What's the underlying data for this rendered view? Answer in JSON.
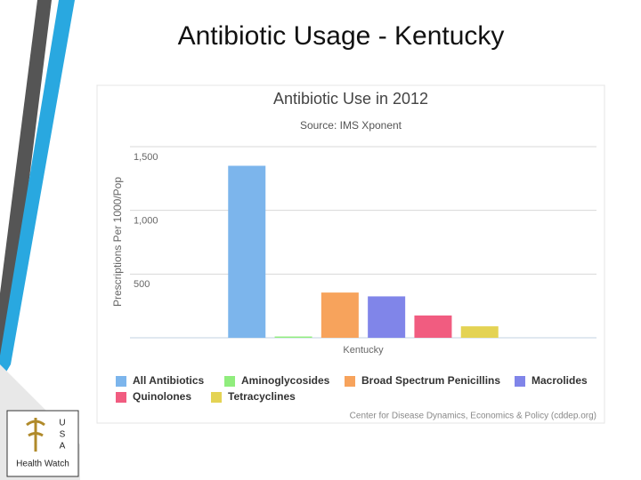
{
  "slide_title": "Antibiotic Usage - Kentucky",
  "logo": {
    "letters": [
      "U",
      "S",
      "A"
    ],
    "caption": "Health Watch"
  },
  "chart_data": {
    "type": "bar",
    "title": "Antibiotic Use in 2012",
    "subtitle": "Source: IMS Xponent",
    "ylabel": "Prescriptions Per 1000/Pop",
    "credits": "Center for Disease Dynamics, Economics & Policy (cddep.org)",
    "categories": [
      "Kentucky"
    ],
    "series": [
      {
        "name": "All Antibiotics",
        "color": "#7cb5ec",
        "values": [
          1350
        ]
      },
      {
        "name": "Aminoglycosides",
        "color": "#90ed7d",
        "values": [
          10
        ]
      },
      {
        "name": "Broad Spectrum Penicillins",
        "color": "#f7a35c",
        "values": [
          355
        ]
      },
      {
        "name": "Macrolides",
        "color": "#8085e9",
        "values": [
          325
        ]
      },
      {
        "name": "Quinolones",
        "color": "#f15c80",
        "values": [
          175
        ]
      },
      {
        "name": "Tetracyclines",
        "color": "#e4d354",
        "values": [
          90
        ]
      }
    ],
    "ylim": [
      0,
      1500
    ],
    "yticks": [
      500,
      {
        "value": 1000,
        "label": "1,000"
      },
      {
        "value": 1500,
        "label": "1,500"
      }
    ],
    "grid": true,
    "legend": "bottom"
  }
}
